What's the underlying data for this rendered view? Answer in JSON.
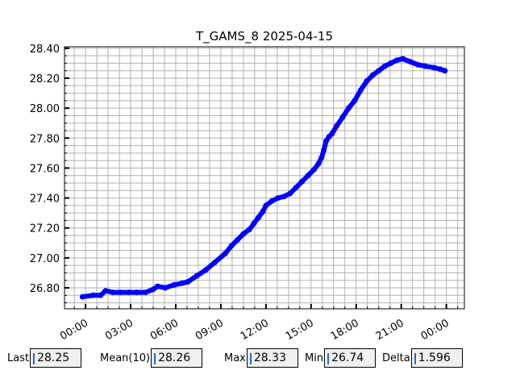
{
  "chart_data": {
    "type": "line",
    "title": "T_GAMS_8 2025-04-15",
    "xlabel": "",
    "ylabel": "",
    "x_unit": "hours",
    "x_tick_labels": [
      "00:00",
      "03:00",
      "06:00",
      "09:00",
      "12:00",
      "15:00",
      "18:00",
      "21:00",
      "00:00"
    ],
    "x_ticks": [
      0,
      3,
      6,
      9,
      12,
      15,
      18,
      21,
      24
    ],
    "y_tick_labels": [
      "28.40",
      "28.20",
      "28.00",
      "27.80",
      "27.60",
      "27.40",
      "27.20",
      "27.00",
      "26.80"
    ],
    "y_ticks": [
      28.4,
      28.2,
      28.0,
      27.8,
      27.6,
      27.4,
      27.2,
      27.0,
      26.8
    ],
    "xlim": [
      -1.4,
      25.2
    ],
    "ylim": [
      26.66,
      28.41
    ],
    "grid": true,
    "color": "#0000ff",
    "series": [
      {
        "x": [
          -0.2,
          0.5,
          1.0,
          1.33,
          1.8,
          2.3,
          2.9,
          3.4,
          4.0,
          4.5,
          4.8,
          5.3,
          5.9,
          6.4,
          6.8,
          7.4,
          8.0,
          8.6,
          9.3,
          9.7,
          10.1,
          10.5,
          10.9,
          11.2,
          11.5,
          11.8,
          12.0,
          12.4,
          12.8,
          13.2,
          13.6,
          14.0,
          14.4,
          14.8,
          15.2,
          15.5,
          15.7,
          15.85,
          16.0,
          16.2,
          16.4,
          16.7,
          17.1,
          17.5,
          17.9,
          18.3,
          18.7,
          19.1,
          19.5,
          19.9,
          20.3,
          20.7,
          21.1,
          21.6,
          22.1,
          22.6,
          23.2,
          23.6,
          23.9
        ],
        "y": [
          26.74,
          26.75,
          26.75,
          26.78,
          26.77,
          26.77,
          26.77,
          26.77,
          26.77,
          26.79,
          26.81,
          26.8,
          26.82,
          26.83,
          26.84,
          26.88,
          26.92,
          26.97,
          27.03,
          27.08,
          27.12,
          27.16,
          27.19,
          27.23,
          27.27,
          27.31,
          27.35,
          27.38,
          27.4,
          27.41,
          27.43,
          27.47,
          27.51,
          27.55,
          27.59,
          27.63,
          27.67,
          27.72,
          27.78,
          27.81,
          27.83,
          27.88,
          27.94,
          28.0,
          28.05,
          28.12,
          28.18,
          28.22,
          28.25,
          28.28,
          28.3,
          28.32,
          28.33,
          28.31,
          28.29,
          28.28,
          28.27,
          28.26,
          28.25
        ]
      }
    ]
  },
  "stats": {
    "last_label": "Last",
    "last_value": "28.25",
    "mean_label": "Mean(10)",
    "mean_value": "28.26",
    "max_label": "Max",
    "max_value": "28.33",
    "min_label": "Min",
    "min_value": "26.74",
    "delta_label": "Delta",
    "delta_value": "1.596"
  }
}
